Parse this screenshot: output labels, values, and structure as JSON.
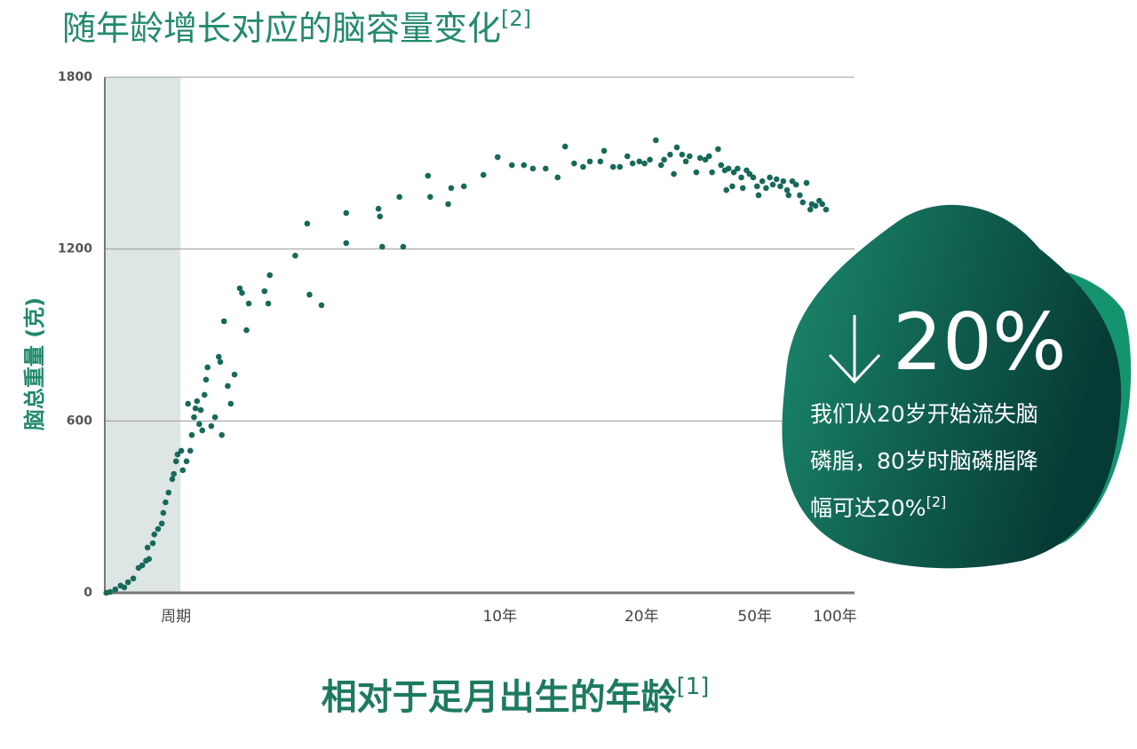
{
  "chart_data": {
    "type": "scatter",
    "title": "随年龄增长对应的脑容量变化",
    "title_note": "[2]",
    "xlabel": "相对于足月出生的年龄",
    "xlabel_note": "[1]",
    "ylabel": "脑总重量 (克)",
    "color": "#17695a",
    "grid": true,
    "xlim": [
      0,
      100
    ],
    "ylim": [
      0,
      1800
    ],
    "yticks": [
      0,
      600,
      1200,
      1800
    ],
    "xticks": [
      {
        "value": 9.5,
        "label": "周期"
      },
      {
        "value": 52.7,
        "label": "10年"
      },
      {
        "value": 71.6,
        "label": "20年"
      },
      {
        "value": 86.7,
        "label": "50年"
      },
      {
        "value": 97.4,
        "label": "100年"
      }
    ],
    "shaded_xrange": [
      0,
      10.1
    ],
    "x": [
      0.2,
      0.7,
      1.4,
      2.1,
      2.6,
      3.1,
      3.8,
      4.5,
      5.0,
      5.5,
      5.7,
      5.9,
      6.4,
      6.6,
      7.1,
      7.6,
      7.8,
      8.1,
      8.5,
      9.0,
      9.2,
      9.5,
      9.7,
      10.2,
      10.4,
      10.9,
      11.1,
      11.4,
      11.6,
      11.9,
      12.1,
      12.3,
      12.6,
      12.8,
      13.0,
      13.3,
      13.5,
      13.7,
      14.2,
      14.7,
      15.2,
      15.4,
      15.6,
      15.9,
      16.4,
      16.8,
      17.3,
      18.0,
      18.3,
      18.9,
      19.2,
      21.3,
      21.8,
      22.0,
      25.4,
      27.0,
      27.3,
      28.9,
      32.2,
      32.2,
      36.5,
      36.7,
      37.0,
      39.3,
      39.8,
      43.1,
      43.4,
      45.8,
      46.2,
      47.9,
      50.5,
      52.4,
      54.3,
      55.9,
      57.1,
      58.8,
      60.4,
      61.4,
      62.6,
      63.8,
      64.7,
      66.1,
      66.6,
      67.8,
      68.7,
      69.7,
      70.4,
      71.3,
      72.0,
      72.7,
      73.5,
      74.2,
      74.6,
      75.4,
      75.9,
      76.3,
      77.0,
      77.5,
      78.0,
      78.9,
      79.4,
      80.1,
      80.6,
      81.0,
      81.8,
      82.2,
      82.7,
      82.9,
      83.2,
      83.7,
      83.9,
      84.4,
      84.9,
      85.1,
      85.6,
      86.0,
      86.5,
      87.0,
      87.2,
      87.7,
      88.2,
      88.7,
      89.1,
      89.6,
      90.1,
      90.5,
      91.0,
      91.2,
      91.7,
      92.2,
      92.7,
      93.1,
      93.6,
      94.1,
      94.3,
      94.8,
      95.3,
      95.7,
      96.2
    ],
    "values": [
      0,
      3,
      12,
      25,
      19,
      37,
      50,
      87,
      96,
      112,
      158,
      118,
      173,
      204,
      223,
      242,
      279,
      316,
      350,
      397,
      415,
      459,
      483,
      496,
      428,
      459,
      660,
      496,
      551,
      613,
      644,
      669,
      589,
      638,
      567,
      691,
      744,
      787,
      582,
      613,
      824,
      806,
      551,
      948,
      722,
      660,
      762,
      1063,
      1047,
      917,
      1010,
      1053,
      1010,
      1109,
      1177,
      1289,
      1041,
      1004,
      1326,
      1221,
      1341,
      1314,
      1208,
      1382,
      1208,
      1456,
      1382,
      1357,
      1413,
      1419,
      1459,
      1521,
      1493,
      1493,
      1481,
      1481,
      1450,
      1558,
      1499,
      1487,
      1506,
      1506,
      1543,
      1487,
      1487,
      1524,
      1499,
      1506,
      1499,
      1512,
      1580,
      1493,
      1512,
      1530,
      1462,
      1555,
      1530,
      1506,
      1524,
      1468,
      1518,
      1512,
      1524,
      1468,
      1549,
      1493,
      1475,
      1406,
      1481,
      1419,
      1468,
      1481,
      1450,
      1413,
      1475,
      1462,
      1450,
      1419,
      1388,
      1437,
      1413,
      1450,
      1425,
      1444,
      1419,
      1437,
      1406,
      1388,
      1437,
      1425,
      1388,
      1363,
      1431,
      1338,
      1357,
      1351,
      1369,
      1357,
      1338
    ]
  },
  "callout": {
    "headline": "20%",
    "lines": [
      "我们从20岁开始流失脑",
      "磷脂，80岁时脑磷脂降",
      "幅可达20%"
    ],
    "note": "[2]"
  }
}
